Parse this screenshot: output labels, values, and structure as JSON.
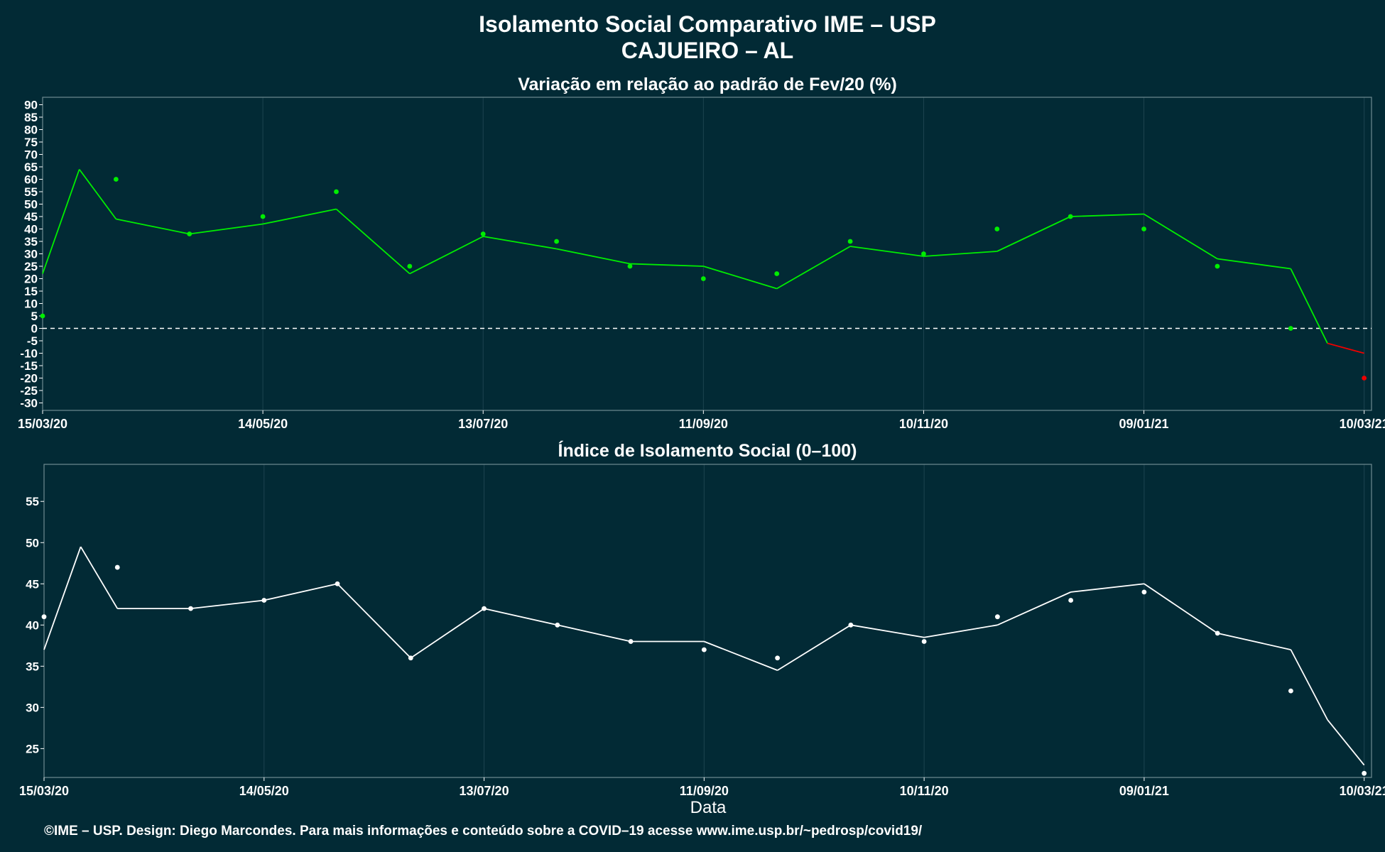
{
  "header": {
    "title_line1": "Isolamento Social Comparativo IME – USP",
    "title_line2": "CAJUEIRO – AL"
  },
  "footer": {
    "credit": "©IME – USP. Design: Diego Marcondes. Para mais informações e conteúdo sobre a COVID–19 acesse www.ime.usp.br/~pedrosp/covid19/"
  },
  "colors": {
    "background": "#022a35",
    "panel_border": "#6f8a90",
    "grid": "#1d4450",
    "positive": "#00ee00",
    "negative": "#ee0000",
    "index_points": "#ffffff",
    "zero_line": "#ffffff"
  },
  "chart_data": [
    {
      "type": "scatter",
      "title": "Variação em relação ao padrão de Fev/20 (%)",
      "xlabel": "",
      "ylabel": "",
      "x_tick_labels": [
        "15/03/20",
        "14/05/20",
        "13/07/20",
        "11/09/20",
        "10/11/20",
        "09/01/21",
        "10/03/21"
      ],
      "x_range": [
        "15/03/20",
        "12/03/21"
      ],
      "ylim": [
        -33,
        93
      ],
      "y_ticks": [
        -30,
        -25,
        -20,
        -15,
        -10,
        -5,
        0,
        5,
        10,
        15,
        20,
        25,
        30,
        35,
        40,
        45,
        50,
        55,
        60,
        65,
        70,
        75,
        80,
        85,
        90
      ],
      "reference_line": 0,
      "grid": true,
      "series": [
        {
          "style": "points",
          "color_rule": "green if >= 0, red if < 0",
          "x": [
            "15/03/20",
            "04/04/20",
            "24/04/20",
            "14/05/20",
            "03/06/20",
            "23/06/20",
            "13/07/20",
            "02/08/20",
            "22/08/20",
            "11/09/20",
            "01/10/20",
            "21/10/20",
            "10/11/20",
            "30/11/20",
            "20/12/20",
            "09/01/21",
            "29/01/21",
            "18/02/21",
            "10/03/21"
          ],
          "y": [
            5,
            60,
            38,
            45,
            55,
            25,
            38,
            35,
            25,
            20,
            22,
            35,
            30,
            40,
            45,
            40,
            25,
            0,
            -20
          ]
        },
        {
          "style": "line",
          "name": "",
          "color_rule": "green if >= 0, red if < 0",
          "x": [
            "15/03/20",
            "25/03/20",
            "04/04/20",
            "24/04/20",
            "14/05/20",
            "03/06/20",
            "23/06/20",
            "13/07/20",
            "02/08/20",
            "22/08/20",
            "11/09/20",
            "01/10/20",
            "21/10/20",
            "10/11/20",
            "30/11/20",
            "20/12/20",
            "09/01/21",
            "29/01/21",
            "18/02/21",
            "28/02/21",
            "10/03/21"
          ],
          "y": [
            22,
            64,
            44,
            38,
            42,
            48,
            22,
            37,
            32,
            26,
            25,
            16,
            33,
            29,
            31,
            45,
            46,
            28,
            24,
            -6,
            -10
          ]
        }
      ]
    },
    {
      "type": "scatter",
      "title": "Índice de Isolamento Social (0–100)",
      "xlabel": "Data",
      "ylabel": "",
      "x_tick_labels": [
        "15/03/20",
        "14/05/20",
        "13/07/20",
        "11/09/20",
        "10/11/20",
        "09/01/21",
        "10/03/21"
      ],
      "x_range": [
        "15/03/20",
        "12/03/21"
      ],
      "ylim": [
        21.5,
        59.5
      ],
      "y_ticks": [
        25,
        30,
        35,
        40,
        45,
        50,
        55
      ],
      "grid": true,
      "series": [
        {
          "style": "points",
          "color": "#ffffff",
          "x": [
            "15/03/20",
            "04/04/20",
            "24/04/20",
            "14/05/20",
            "03/06/20",
            "23/06/20",
            "13/07/20",
            "02/08/20",
            "22/08/20",
            "11/09/20",
            "01/10/20",
            "21/10/20",
            "10/11/20",
            "30/11/20",
            "20/12/20",
            "09/01/21",
            "29/01/21",
            "18/02/21",
            "10/03/21"
          ],
          "y": [
            41,
            47,
            42,
            43,
            45,
            36,
            42,
            40,
            38,
            37,
            36,
            40,
            38,
            41,
            43,
            44,
            39,
            32,
            22
          ]
        },
        {
          "style": "line",
          "name": "",
          "color": "#ffffff",
          "x": [
            "15/03/20",
            "25/03/20",
            "04/04/20",
            "24/04/20",
            "14/05/20",
            "03/06/20",
            "23/06/20",
            "13/07/20",
            "02/08/20",
            "22/08/20",
            "11/09/20",
            "01/10/20",
            "21/10/20",
            "10/11/20",
            "30/11/20",
            "20/12/20",
            "09/01/21",
            "29/01/21",
            "18/02/21",
            "28/02/21",
            "10/03/21"
          ],
          "y": [
            37,
            49.5,
            42,
            42,
            43,
            45,
            36,
            42,
            40,
            38,
            38,
            34.5,
            40,
            38.5,
            40,
            44,
            45,
            39,
            37,
            28.5,
            23
          ]
        }
      ]
    }
  ]
}
